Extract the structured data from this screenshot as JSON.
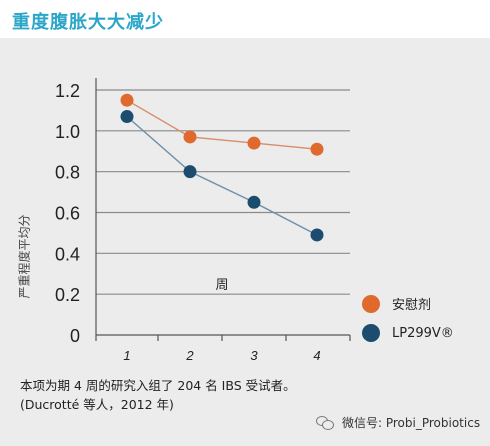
{
  "header": {
    "title": "重度腹胀大大减少"
  },
  "chart_data": {
    "type": "line",
    "ylabel": "严重程度平均分",
    "xlabel": "周",
    "categories": [
      "1",
      "2",
      "3",
      "4"
    ],
    "yticks": [
      "1.2",
      "1.0",
      "0.8",
      "0.6",
      "0.4",
      "0.2",
      "0"
    ],
    "ylim": [
      0,
      1.2
    ],
    "grid": true,
    "legend_position": "right",
    "series": [
      {
        "name": "安慰剂",
        "color": "#e06a2e",
        "values": [
          1.15,
          0.97,
          0.94,
          0.91
        ]
      },
      {
        "name": "LP299V®",
        "color": "#1c4d6e",
        "values": [
          1.07,
          0.8,
          0.65,
          0.49
        ]
      }
    ]
  },
  "footnote": {
    "line1": "本项为期 4 周的研究入组了 204 名 IBS 受试者。",
    "line2": "(Ducrotté 等人，2012 年)"
  },
  "watermark": {
    "text": "微信号: Probi_Probiotics"
  }
}
